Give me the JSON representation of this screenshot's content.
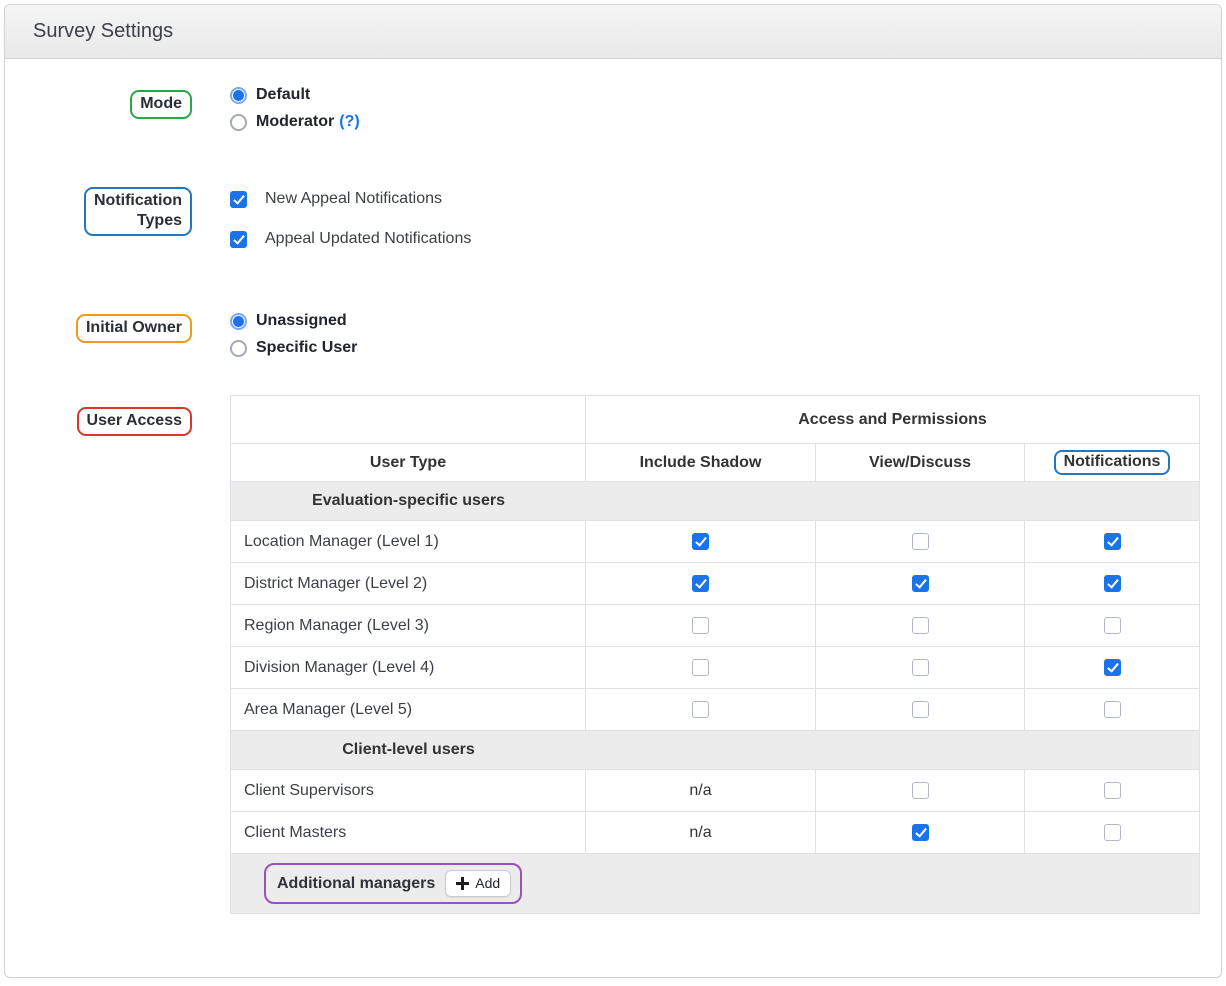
{
  "panel": {
    "title": "Survey Settings"
  },
  "colors": {
    "mode_box": "#28a745",
    "notification_types_box": "#2277bd",
    "initial_owner_box": "#ee9b1d",
    "user_access_box": "#d9372e",
    "notifications_column_box": "#2277bd",
    "additional_managers_box": "#9b51bd",
    "checkbox_checked": "#1a73e8",
    "radio_selected": "#1a73e8",
    "help_link": "#1a73e8"
  },
  "mode": {
    "label": "Mode",
    "options": [
      {
        "label": "Default",
        "selected": true
      },
      {
        "label": "Moderator",
        "selected": false,
        "help": "(?)"
      }
    ]
  },
  "notification_types": {
    "label_line1": "Notification",
    "label_line2": "Types",
    "options": [
      {
        "label": "New Appeal Notifications",
        "checked": true
      },
      {
        "label": "Appeal Updated Notifications",
        "checked": true
      }
    ]
  },
  "initial_owner": {
    "label": "Initial Owner",
    "options": [
      {
        "label": "Unassigned",
        "selected": true
      },
      {
        "label": "Specific User",
        "selected": false
      }
    ]
  },
  "user_access": {
    "label": "User Access",
    "table": {
      "group_header": "Access and Permissions",
      "columns": [
        "User Type",
        "Include Shadow",
        "View/Discuss",
        "Notifications"
      ],
      "sections": [
        {
          "title": "Evaluation-specific users",
          "rows": [
            {
              "label": "Location Manager (Level 1)",
              "cells": [
                "checked",
                "unchecked",
                "checked"
              ]
            },
            {
              "label": "District Manager (Level 2)",
              "cells": [
                "checked",
                "checked",
                "checked"
              ]
            },
            {
              "label": "Region Manager (Level 3)",
              "cells": [
                "unchecked",
                "unchecked",
                "unchecked"
              ]
            },
            {
              "label": "Division Manager (Level 4)",
              "cells": [
                "unchecked",
                "unchecked",
                "checked"
              ]
            },
            {
              "label": "Area Manager (Level 5)",
              "cells": [
                "unchecked",
                "unchecked",
                "unchecked"
              ]
            }
          ]
        },
        {
          "title": "Client-level users",
          "rows": [
            {
              "label": "Client Supervisors",
              "cells": [
                "n/a",
                "unchecked",
                "unchecked"
              ]
            },
            {
              "label": "Client Masters",
              "cells": [
                "n/a",
                "checked",
                "unchecked"
              ]
            }
          ]
        }
      ],
      "footer": {
        "label": "Additional managers",
        "add_button_label": "Add"
      }
    }
  }
}
